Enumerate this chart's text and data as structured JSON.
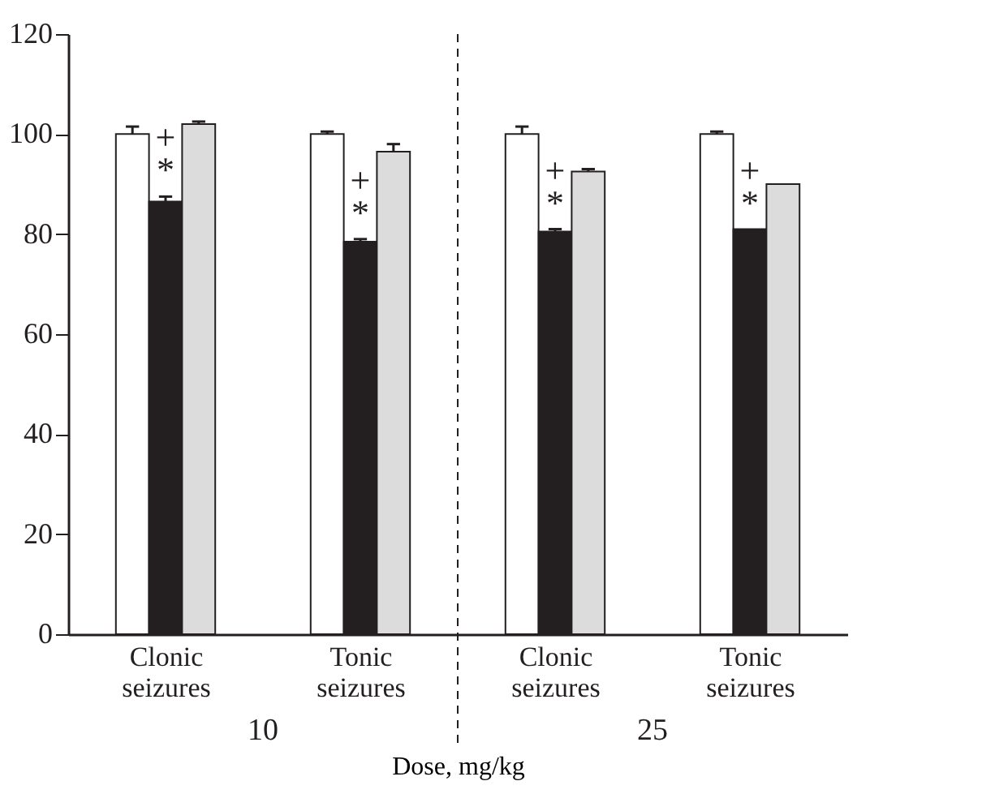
{
  "chart_data": {
    "type": "bar",
    "categories": [
      "Clonic seizures",
      "Tonic seizures",
      "Clonic seizures",
      "Tonic seizures"
    ],
    "series": [
      {
        "color": "#ffffff",
        "values": [
          100,
          100,
          100,
          100
        ],
        "errors": [
          [
            100,
            101.5
          ],
          [
            100,
            100.5
          ],
          [
            100,
            101.5
          ],
          [
            100,
            100.5
          ]
        ]
      },
      {
        "color": "#231f20",
        "values": [
          86.5,
          78.5,
          80.5,
          81
        ],
        "errors": [
          [
            86.5,
            87.5
          ],
          [
            78.5,
            79
          ],
          [
            80.5,
            81
          ],
          null
        ],
        "value_labels": [
          "+\n*",
          "+\n*",
          "+\n*",
          "+\n*"
        ]
      },
      {
        "color": "#dcdcdc",
        "values": [
          102,
          96.5,
          92.5,
          90
        ],
        "errors": [
          [
            102,
            102.5
          ],
          [
            96.5,
            98
          ],
          [
            92.5,
            93
          ],
          null
        ]
      }
    ],
    "ylim": [
      0,
      120
    ],
    "yticks": [
      0,
      20,
      40,
      60,
      80,
      100,
      120
    ],
    "xlabel": "Dose, mg/kg",
    "annotations": [
      "10",
      "25"
    ],
    "grid": false
  }
}
